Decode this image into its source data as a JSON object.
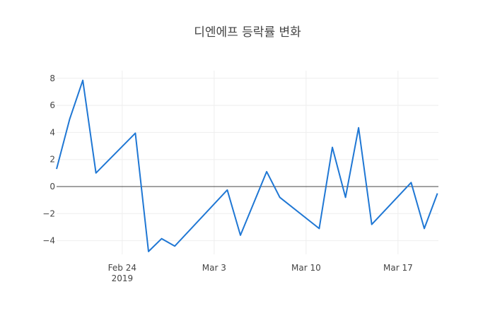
{
  "title": "디엔에프 등락률 변화",
  "colors": {
    "line": "#1f77d4",
    "grid": "#eeeeee",
    "zero": "#444444",
    "text": "#444444"
  },
  "chart_data": {
    "type": "line",
    "title": "디엔에프 등락률 변화",
    "xlabel": "",
    "ylabel": "",
    "x": [
      "2019-02-19",
      "2019-02-20",
      "2019-02-21",
      "2019-02-22",
      "2019-02-25",
      "2019-02-26",
      "2019-02-27",
      "2019-02-28",
      "2019-03-04",
      "2019-03-05",
      "2019-03-07",
      "2019-03-08",
      "2019-03-11",
      "2019-03-12",
      "2019-03-13",
      "2019-03-14",
      "2019-03-15",
      "2019-03-18",
      "2019-03-19",
      "2019-03-20"
    ],
    "series": [
      {
        "name": "등락률",
        "values": [
          1.3,
          5.0,
          7.85,
          1.0,
          3.95,
          -4.8,
          -3.85,
          -4.4,
          -0.25,
          -3.6,
          1.1,
          -0.8,
          -3.1,
          2.9,
          -0.8,
          4.35,
          -2.8,
          0.3,
          -3.1,
          -0.5
        ]
      }
    ],
    "x_ticks": [
      "Feb 24\n2019",
      "Mar 3",
      "Mar 10",
      "Mar 17"
    ],
    "x_tick_labels": [
      {
        "line1": "Feb 24",
        "line2": "2019"
      },
      {
        "line1": "Mar 3",
        "line2": ""
      },
      {
        "line1": "Mar 10",
        "line2": ""
      },
      {
        "line1": "Mar 17",
        "line2": ""
      }
    ],
    "y_ticks": [
      8,
      6,
      4,
      2,
      0,
      -2,
      -4
    ],
    "y_tick_labels": [
      "8",
      "6",
      "4",
      "2",
      "0",
      "−2",
      "−4"
    ],
    "ylim": [
      -5.2,
      8.4
    ],
    "grid": true,
    "legend": "none"
  }
}
